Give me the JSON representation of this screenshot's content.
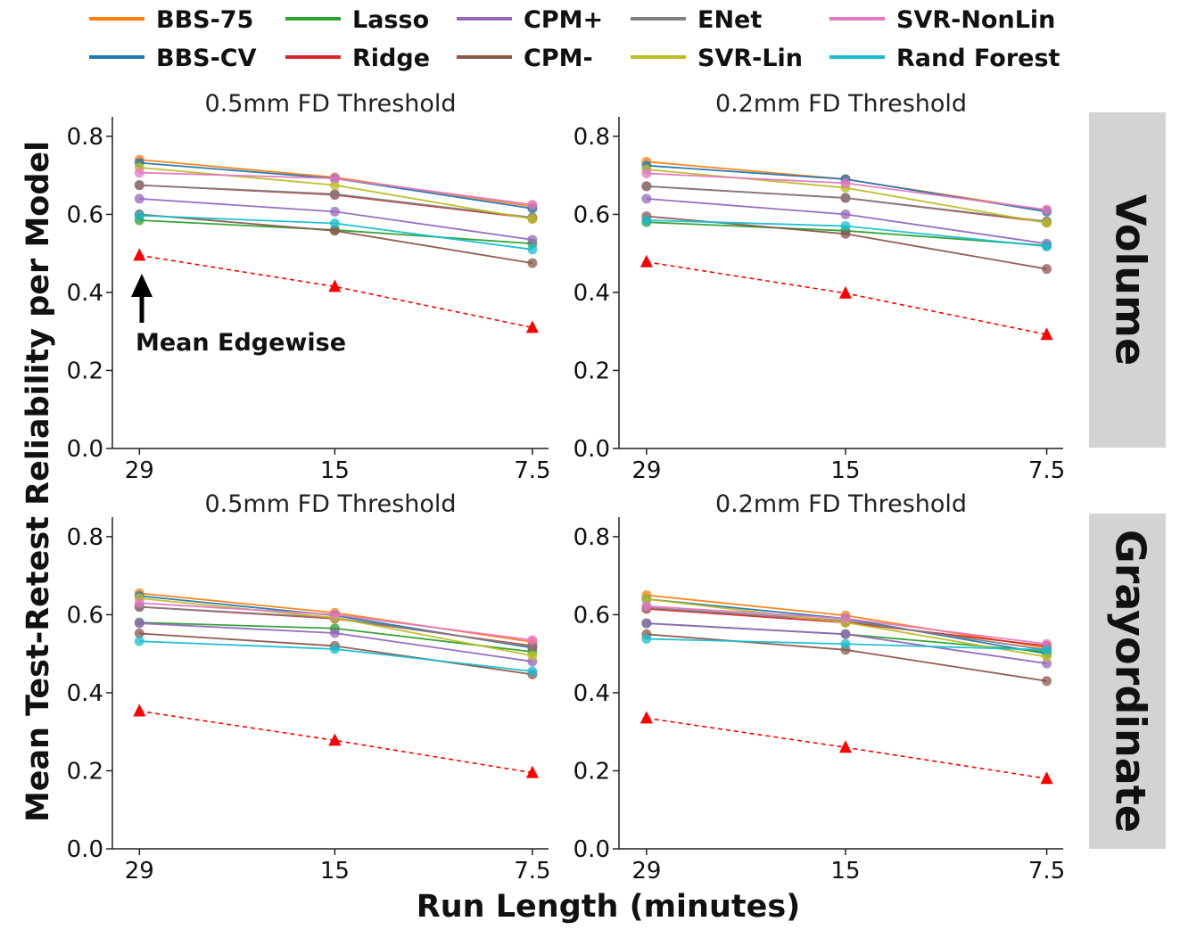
{
  "colors": {
    "BBS-75": "#ff7f0e",
    "BBS-CV": "#1f77b4",
    "Lasso": "#2ca02c",
    "Ridge": "#d62728",
    "CPM+": "#9467bd",
    "CPM-": "#8c564b",
    "ENet": "#7f7f7f",
    "SVR-Lin": "#bcbd22",
    "SVR-NonLin": "#e377c2",
    "Rand Forest": "#17becf",
    "Mean Edgewise": "#ff0000",
    "facet_bg": "#d3d3d3"
  },
  "legend": {
    "columns": [
      [
        "BBS-75",
        "BBS-CV"
      ],
      [
        "Lasso",
        "Ridge"
      ],
      [
        "CPM+",
        "CPM-"
      ],
      [
        "ENet",
        "SVR-Lin"
      ],
      [
        "SVR-NonLin",
        "Rand Forest"
      ]
    ]
  },
  "labels": {
    "ylabel": "Mean Test-Retest Reliability per Model",
    "xlabel": "Run Length (minutes)",
    "facet_top": "Volume",
    "facet_bottom": "Grayordinate",
    "annotation": "Mean Edgewise"
  },
  "chart_data": [
    {
      "type": "line",
      "row": "Volume",
      "title": "0.5mm FD Threshold",
      "categories": [
        "29",
        "15",
        "7.5"
      ],
      "ylim": [
        0,
        0.85
      ],
      "yticks": [
        "0.0",
        "0.2",
        "0.4",
        "0.6",
        "0.8"
      ],
      "series": [
        {
          "name": "BBS-75",
          "values": [
            0.74,
            0.695,
            0.62
          ]
        },
        {
          "name": "BBS-CV",
          "values": [
            0.732,
            0.692,
            0.615
          ]
        },
        {
          "name": "Lasso",
          "values": [
            0.585,
            0.56,
            0.525
          ]
        },
        {
          "name": "Ridge",
          "values": [
            0.675,
            0.65,
            0.59
          ]
        },
        {
          "name": "CPM+",
          "values": [
            0.64,
            0.607,
            0.535
          ]
        },
        {
          "name": "CPM-",
          "values": [
            0.6,
            0.558,
            0.475
          ]
        },
        {
          "name": "ENet",
          "values": [
            0.675,
            0.652,
            0.592
          ]
        },
        {
          "name": "SVR-Lin",
          "values": [
            0.72,
            0.675,
            0.588
          ]
        },
        {
          "name": "SVR-NonLin",
          "values": [
            0.707,
            0.692,
            0.625
          ]
        },
        {
          "name": "Rand Forest",
          "values": [
            0.597,
            0.577,
            0.51
          ]
        },
        {
          "name": "Mean Edgewise",
          "values": [
            0.495,
            0.415,
            0.31
          ],
          "style": "dashed-triangle"
        }
      ]
    },
    {
      "type": "line",
      "row": "Volume",
      "title": "0.2mm FD Threshold",
      "categories": [
        "29",
        "15",
        "7.5"
      ],
      "ylim": [
        0,
        0.85
      ],
      "yticks": [
        "0.0",
        "0.2",
        "0.4",
        "0.6",
        "0.8"
      ],
      "series": [
        {
          "name": "BBS-75",
          "values": [
            0.735,
            0.69,
            0.61
          ]
        },
        {
          "name": "BBS-CV",
          "values": [
            0.725,
            0.69,
            0.607
          ]
        },
        {
          "name": "Lasso",
          "values": [
            0.58,
            0.558,
            0.52
          ]
        },
        {
          "name": "Ridge",
          "values": [
            0.672,
            0.642,
            0.58
          ]
        },
        {
          "name": "CPM+",
          "values": [
            0.64,
            0.6,
            0.525
          ]
        },
        {
          "name": "CPM-",
          "values": [
            0.595,
            0.55,
            0.46
          ]
        },
        {
          "name": "ENet",
          "values": [
            0.672,
            0.642,
            0.582
          ]
        },
        {
          "name": "SVR-Lin",
          "values": [
            0.715,
            0.668,
            0.578
          ]
        },
        {
          "name": "SVR-NonLin",
          "values": [
            0.705,
            0.68,
            0.612
          ]
        },
        {
          "name": "Rand Forest",
          "values": [
            0.585,
            0.57,
            0.518
          ]
        },
        {
          "name": "Mean Edgewise",
          "values": [
            0.478,
            0.398,
            0.292
          ],
          "style": "dashed-triangle"
        }
      ]
    },
    {
      "type": "line",
      "row": "Grayordinate",
      "title": "0.5mm FD Threshold",
      "categories": [
        "29",
        "15",
        "7.5"
      ],
      "ylim": [
        0,
        0.85
      ],
      "yticks": [
        "0.0",
        "0.2",
        "0.4",
        "0.6",
        "0.8"
      ],
      "series": [
        {
          "name": "BBS-75",
          "values": [
            0.655,
            0.605,
            0.53
          ]
        },
        {
          "name": "BBS-CV",
          "values": [
            0.648,
            0.598,
            0.515
          ]
        },
        {
          "name": "Lasso",
          "values": [
            0.58,
            0.565,
            0.505
          ]
        },
        {
          "name": "Ridge",
          "values": [
            0.62,
            0.59,
            0.52
          ]
        },
        {
          "name": "CPM+",
          "values": [
            0.578,
            0.553,
            0.48
          ]
        },
        {
          "name": "CPM-",
          "values": [
            0.552,
            0.52,
            0.447
          ]
        },
        {
          "name": "ENet",
          "values": [
            0.62,
            0.592,
            0.518
          ]
        },
        {
          "name": "SVR-Lin",
          "values": [
            0.642,
            0.592,
            0.495
          ]
        },
        {
          "name": "SVR-NonLin",
          "values": [
            0.63,
            0.6,
            0.535
          ]
        },
        {
          "name": "Rand Forest",
          "values": [
            0.532,
            0.512,
            0.455
          ]
        },
        {
          "name": "Mean Edgewise",
          "values": [
            0.353,
            0.278,
            0.195
          ],
          "style": "dashed-triangle"
        }
      ]
    },
    {
      "type": "line",
      "row": "Grayordinate",
      "title": "0.2mm FD Threshold",
      "categories": [
        "29",
        "15",
        "7.5"
      ],
      "ylim": [
        0,
        0.85
      ],
      "yticks": [
        "0.0",
        "0.2",
        "0.4",
        "0.6",
        "0.8"
      ],
      "series": [
        {
          "name": "BBS-75",
          "values": [
            0.65,
            0.598,
            0.515
          ]
        },
        {
          "name": "BBS-CV",
          "values": [
            0.64,
            0.59,
            0.5
          ]
        },
        {
          "name": "Lasso",
          "values": [
            0.578,
            0.55,
            0.505
          ]
        },
        {
          "name": "Ridge",
          "values": [
            0.615,
            0.58,
            0.52
          ]
        },
        {
          "name": "CPM+",
          "values": [
            0.578,
            0.55,
            0.475
          ]
        },
        {
          "name": "CPM-",
          "values": [
            0.55,
            0.51,
            0.43
          ]
        },
        {
          "name": "ENet",
          "values": [
            0.618,
            0.585,
            0.51
          ]
        },
        {
          "name": "SVR-Lin",
          "values": [
            0.64,
            0.58,
            0.492
          ]
        },
        {
          "name": "SVR-NonLin",
          "values": [
            0.622,
            0.59,
            0.525
          ]
        },
        {
          "name": "Rand Forest",
          "values": [
            0.538,
            0.525,
            0.51
          ]
        },
        {
          "name": "Mean Edgewise",
          "values": [
            0.335,
            0.26,
            0.18
          ],
          "style": "dashed-triangle"
        }
      ]
    }
  ]
}
